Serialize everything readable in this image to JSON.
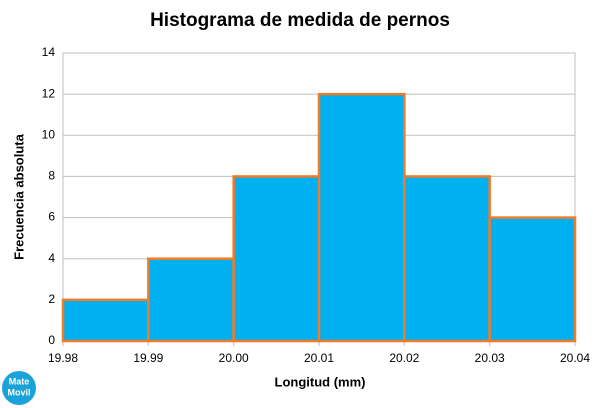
{
  "chart_data": {
    "type": "histogram",
    "title": "Histograma de medida de pernos",
    "x_label": "Longitud (mm)",
    "y_label": "Frecuencia absoluta",
    "bins": [
      19.98,
      19.99,
      {
        "value": 20,
        "label": "20.00"
      },
      20.01,
      20.02,
      20.03,
      20.04
    ],
    "values": [
      2,
      4,
      8,
      12,
      8,
      6
    ],
    "color": "#00b0f0",
    "edge_color": "#f07c28",
    "xlim": [
      19.98,
      20.04
    ],
    "xticks": [
      19.98,
      19.99,
      {
        "value": 20,
        "label": "20.00"
      },
      20.01,
      20.02,
      20.03,
      20.04
    ],
    "ylim": [
      0,
      14
    ],
    "yticks": [
      0,
      2,
      4,
      6,
      8,
      10,
      12,
      14
    ],
    "grid": true
  },
  "watermark": {
    "line1": "Mate",
    "line2": "Movil"
  }
}
